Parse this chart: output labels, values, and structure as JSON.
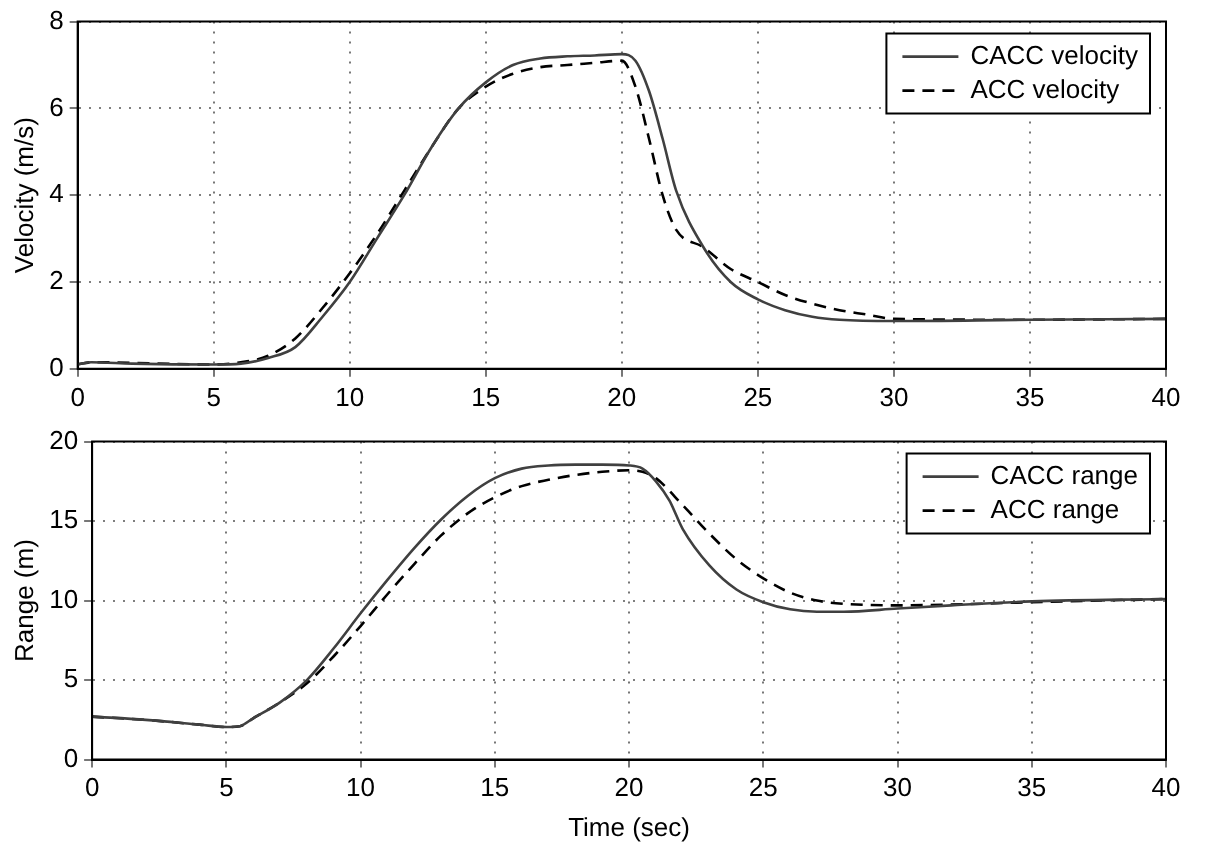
{
  "chart_data": [
    {
      "type": "line",
      "ylabel": "Velocity (m/s)",
      "xlim": [
        0,
        40
      ],
      "xticks": [
        0,
        5,
        10,
        15,
        20,
        25,
        30,
        35,
        40
      ],
      "ylim": [
        0,
        8
      ],
      "yticks": [
        0,
        2,
        4,
        6,
        8
      ],
      "grid": true,
      "legend": "top right",
      "series": [
        {
          "name": "CACC velocity",
          "color": "#404040",
          "line_style": "solid",
          "x": [
            0,
            0.5,
            2,
            5,
            6,
            7,
            8,
            9,
            10,
            11,
            12,
            13,
            14,
            15,
            16,
            17,
            18,
            19,
            20,
            20.5,
            21,
            21.5,
            22,
            23,
            24,
            25,
            26,
            27,
            28,
            30,
            35,
            40
          ],
          "values": [
            0.1,
            0.15,
            0.12,
            0.1,
            0.12,
            0.25,
            0.5,
            1.2,
            2.0,
            3.0,
            4.0,
            5.1,
            6.0,
            6.6,
            7.0,
            7.15,
            7.2,
            7.22,
            7.25,
            7.1,
            6.4,
            5.3,
            4.1,
            2.8,
            2.0,
            1.6,
            1.35,
            1.2,
            1.13,
            1.1,
            1.13,
            1.15
          ]
        },
        {
          "name": "ACC velocity",
          "color": "#000000",
          "line_style": "dashed",
          "x": [
            0,
            0.5,
            5,
            6,
            7,
            8,
            9,
            10,
            11,
            12,
            13,
            14,
            15,
            16,
            17,
            18,
            19,
            20,
            20.5,
            21,
            21.5,
            22,
            23,
            24,
            25,
            26,
            27,
            28,
            29,
            30,
            35,
            40
          ],
          "values": [
            0.1,
            0.15,
            0.1,
            0.15,
            0.3,
            0.7,
            1.4,
            2.2,
            3.1,
            4.1,
            5.1,
            6.0,
            6.5,
            6.8,
            6.95,
            7.0,
            7.05,
            7.1,
            6.5,
            5.3,
            4.0,
            3.2,
            2.8,
            2.3,
            2.0,
            1.7,
            1.5,
            1.35,
            1.25,
            1.15,
            1.13,
            1.15
          ]
        }
      ]
    },
    {
      "type": "line",
      "xlabel": "Time (sec)",
      "ylabel": "Range (m)",
      "xlim": [
        0,
        40
      ],
      "xticks": [
        0,
        5,
        10,
        15,
        20,
        25,
        30,
        35,
        40
      ],
      "ylim": [
        0,
        20
      ],
      "yticks": [
        0,
        5,
        10,
        15,
        20
      ],
      "grid": true,
      "legend": "top right",
      "series": [
        {
          "name": "CACC range",
          "color": "#404040",
          "line_style": "solid",
          "x": [
            0,
            2,
            4,
            5,
            5.5,
            6,
            7,
            8,
            9,
            10,
            11,
            12,
            13,
            14,
            15,
            16,
            17,
            18,
            19,
            20,
            20.5,
            21,
            21.5,
            22,
            23,
            24,
            25,
            26,
            27,
            28,
            30,
            32,
            35,
            40
          ],
          "values": [
            2.7,
            2.5,
            2.2,
            2.05,
            2.1,
            2.6,
            3.6,
            5.0,
            7.0,
            9.2,
            11.3,
            13.3,
            15.1,
            16.6,
            17.7,
            18.3,
            18.5,
            18.55,
            18.55,
            18.5,
            18.3,
            17.5,
            16.3,
            14.5,
            12.2,
            10.7,
            9.9,
            9.45,
            9.3,
            9.3,
            9.5,
            9.7,
            9.95,
            10.1
          ]
        },
        {
          "name": "ACC range",
          "color": "#000000",
          "line_style": "dashed",
          "x": [
            0,
            2,
            4,
            5,
            5.5,
            6,
            7,
            8,
            9,
            10,
            11,
            12,
            13,
            14,
            15,
            16,
            17,
            18,
            19,
            20,
            20.5,
            21,
            22,
            23,
            24,
            25,
            26,
            27,
            28,
            30,
            32,
            35,
            40
          ],
          "values": [
            2.7,
            2.5,
            2.2,
            2.05,
            2.1,
            2.6,
            3.6,
            4.8,
            6.5,
            8.4,
            10.4,
            12.3,
            14.1,
            15.5,
            16.5,
            17.2,
            17.6,
            17.9,
            18.1,
            18.2,
            18.1,
            17.7,
            16.0,
            14.2,
            12.6,
            11.4,
            10.5,
            10.0,
            9.8,
            9.7,
            9.75,
            9.9,
            10.1
          ]
        }
      ]
    }
  ]
}
